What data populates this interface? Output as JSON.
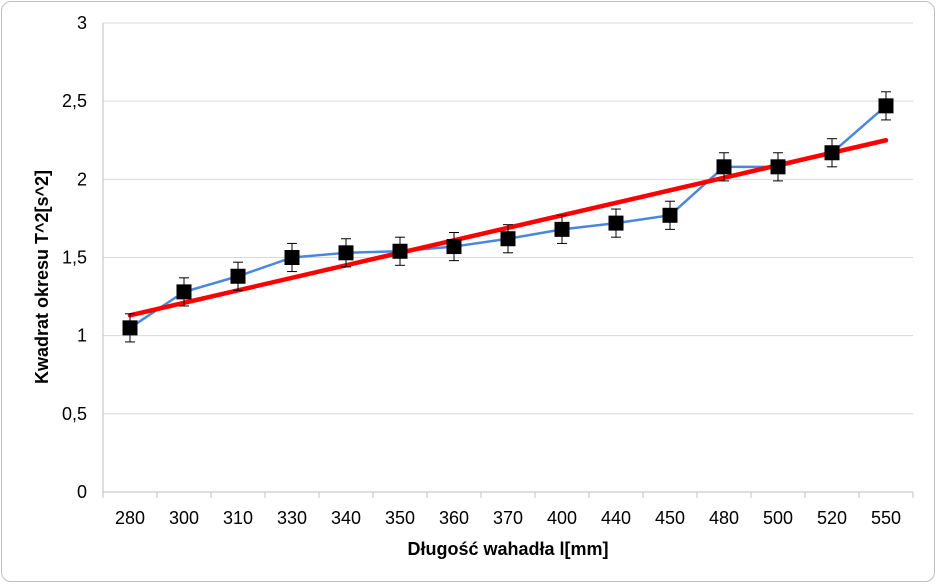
{
  "chart_data": {
    "type": "line",
    "title": "",
    "xlabel": "Długość wahadła l[mm]",
    "ylabel": "Kwadrat okresu T^2[s^2]",
    "categories": [
      "280",
      "300",
      "310",
      "330",
      "340",
      "350",
      "360",
      "370",
      "400",
      "440",
      "450",
      "480",
      "500",
      "520",
      "550"
    ],
    "ylim": [
      0,
      3
    ],
    "yticks": [
      "0",
      "0,5",
      "1",
      "1,5",
      "2",
      "2,5",
      "3"
    ],
    "grid": "horizontal",
    "series": [
      {
        "values": [
          1.05,
          1.28,
          1.38,
          1.5,
          1.53,
          1.54,
          1.57,
          1.62,
          1.68,
          1.72,
          1.77,
          2.08,
          2.08,
          2.17,
          2.47
        ],
        "error": 0.09,
        "color": "#4a86e0",
        "marker": "square"
      },
      {
        "type": "trendline",
        "start": 1.13,
        "end": 2.25,
        "color": "#ff0000"
      }
    ]
  }
}
